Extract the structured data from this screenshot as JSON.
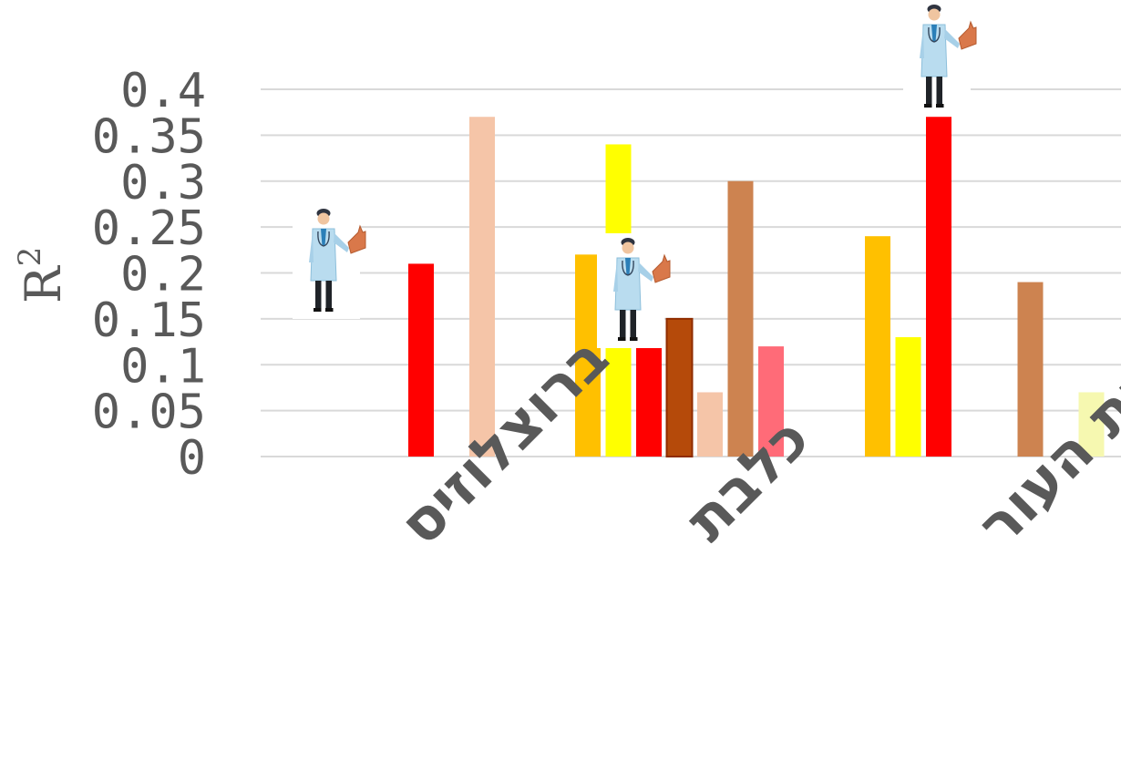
{
  "chart_data": {
    "type": "bar",
    "ylabel": "R",
    "ylabel_superscript": "2",
    "ylim": [
      0,
      0.4
    ],
    "yticks": [
      "0",
      "0.05",
      "0.1",
      "0.15",
      "0.2",
      "0.25",
      "0.3",
      "0.35",
      "0.4"
    ],
    "grid": true,
    "legend": "none",
    "categories": [
      "ברוצלוזיס",
      "כלבת",
      "קטרת העור"
    ],
    "series": [
      {
        "color": "#ffc000",
        "values": [
          null,
          0.22,
          0.24
        ]
      },
      {
        "color": "#ffff00",
        "values": [
          null,
          0.34,
          0.13
        ]
      },
      {
        "color": "#ff0000",
        "values": [
          0.21,
          0.12,
          0.37
        ]
      },
      {
        "color": "#b54a0a",
        "values": [
          null,
          0.15,
          null
        ]
      },
      {
        "color": "#f5c5a8",
        "values": [
          0.37,
          0.07,
          null
        ]
      },
      {
        "color": "#cd8350",
        "values": [
          null,
          0.3,
          0.19
        ]
      },
      {
        "color": "#ff6b78",
        "values": [
          null,
          0.12,
          null
        ]
      },
      {
        "color": "#f6f8b0",
        "values": [
          null,
          null,
          0.07
        ]
      }
    ],
    "annotations": [
      {
        "type": "doctor-with-animal-icon",
        "category": "ברוצלוזיס",
        "series_index": 2
      },
      {
        "type": "doctor-with-animal-icon",
        "category": "כלבת",
        "series_index": 1
      },
      {
        "type": "doctor-with-animal-icon",
        "category": "קטרת העור",
        "series_index": 2
      }
    ]
  }
}
